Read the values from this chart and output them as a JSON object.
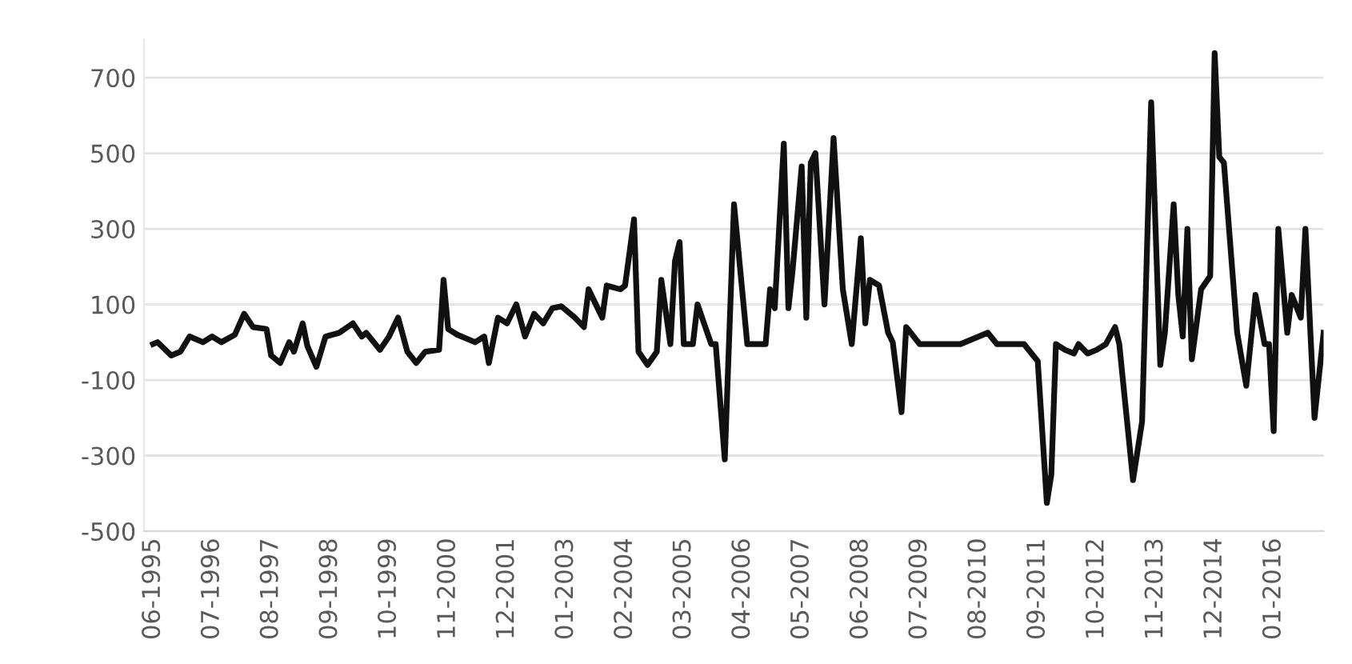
{
  "chart_data": {
    "type": "line",
    "color": "#111111",
    "line_style": "solid",
    "marker": "none",
    "grid": "y",
    "legend": false,
    "x": [
      "1995-06",
      "1995-07",
      "1995-10",
      "1995-12",
      "1996-02",
      "1996-05",
      "1996-07",
      "1996-09",
      "1996-12",
      "1997-02",
      "1997-04",
      "1997-07",
      "1997-08",
      "1997-10",
      "1997-12",
      "1998-01",
      "1998-03",
      "1998-04",
      "1998-06",
      "1998-08",
      "1998-11",
      "1999-02",
      "1999-04",
      "1999-05",
      "1999-08",
      "1999-10",
      "1999-12",
      "2000-02",
      "2000-04",
      "2000-06",
      "2000-09",
      "2000-10",
      "2000-11",
      "2001-01",
      "2001-05",
      "2001-07",
      "2001-08",
      "2001-10",
      "2001-12",
      "2002-02",
      "2002-04",
      "2002-06",
      "2002-08",
      "2002-10",
      "2002-12",
      "2003-03",
      "2003-05",
      "2003-06",
      "2003-09",
      "2003-10",
      "2004-01",
      "2004-02",
      "2004-04",
      "2004-05",
      "2004-07",
      "2004-09",
      "2004-10",
      "2004-12",
      "2005-01",
      "2005-02",
      "2005-03",
      "2005-05",
      "2005-06",
      "2005-09",
      "2005-10",
      "2005-12",
      "2006-02",
      "2006-05",
      "2006-09",
      "2006-10",
      "2006-11",
      "2007-01",
      "2007-02",
      "2007-03",
      "2007-05",
      "2007-06",
      "2007-07",
      "2007-08",
      "2007-10",
      "2007-12",
      "2008-02",
      "2008-04",
      "2008-06",
      "2008-07",
      "2008-08",
      "2008-10",
      "2008-12",
      "2009-01",
      "2009-03",
      "2009-04",
      "2009-07",
      "2009-09",
      "2010-04",
      "2010-10",
      "2010-12",
      "2011-06",
      "2011-09",
      "2011-11",
      "2011-12",
      "2012-01",
      "2012-03",
      "2012-05",
      "2012-06",
      "2012-08",
      "2012-10",
      "2012-12",
      "2013-02",
      "2013-03",
      "2013-06",
      "2013-08",
      "2013-10",
      "2013-12",
      "2014-01",
      "2014-03",
      "2014-04",
      "2014-05",
      "2014-06",
      "2014-07",
      "2014-09",
      "2014-11",
      "2014-12",
      "2015-01",
      "2015-02",
      "2015-05",
      "2015-07",
      "2015-09",
      "2015-11",
      "2015-12",
      "2016-01",
      "2016-02",
      "2016-04",
      "2016-05",
      "2016-07",
      "2016-08",
      "2016-10",
      "2016-12"
    ],
    "values": [
      -5,
      0,
      -35,
      -25,
      15,
      0,
      15,
      0,
      20,
      75,
      40,
      35,
      -35,
      -55,
      0,
      -25,
      50,
      -10,
      -65,
      15,
      25,
      50,
      15,
      25,
      -20,
      15,
      65,
      -25,
      -55,
      -25,
      -20,
      165,
      35,
      20,
      0,
      15,
      -55,
      65,
      50,
      100,
      15,
      75,
      50,
      90,
      95,
      65,
      40,
      140,
      65,
      150,
      140,
      150,
      325,
      -25,
      -60,
      -25,
      165,
      -5,
      215,
      265,
      -5,
      -5,
      100,
      -5,
      -5,
      -310,
      365,
      -5,
      -5,
      140,
      90,
      525,
      90,
      190,
      465,
      65,
      475,
      500,
      100,
      540,
      140,
      -5,
      275,
      50,
      165,
      150,
      25,
      0,
      -185,
      40,
      -5,
      -5,
      -5,
      25,
      -5,
      -5,
      -50,
      -425,
      -350,
      -5,
      -20,
      -30,
      -5,
      -30,
      -20,
      -5,
      40,
      -5,
      -365,
      -210,
      635,
      -60,
      25,
      365,
      125,
      15,
      300,
      -45,
      140,
      175,
      765,
      490,
      475,
      25,
      -115,
      125,
      -5,
      -5,
      -235,
      300,
      25,
      125,
      65,
      300,
      -200,
      25
    ],
    "xlim": [
      "1995-04",
      "2016-12"
    ],
    "xticks": [
      {
        "value": "1995-06",
        "label": "06-1995"
      },
      {
        "value": "1996-07",
        "label": "07-1996"
      },
      {
        "value": "1997-08",
        "label": "08-1997"
      },
      {
        "value": "1998-09",
        "label": "09-1998"
      },
      {
        "value": "1999-10",
        "label": "10-1999"
      },
      {
        "value": "2000-11",
        "label": "11-2000"
      },
      {
        "value": "2001-12",
        "label": "12-2001"
      },
      {
        "value": "2003-01",
        "label": "01-2003"
      },
      {
        "value": "2004-02",
        "label": "02-2004"
      },
      {
        "value": "2005-03",
        "label": "03-2005"
      },
      {
        "value": "2006-04",
        "label": "04-2006"
      },
      {
        "value": "2007-05",
        "label": "05-2007"
      },
      {
        "value": "2008-06",
        "label": "06-2008"
      },
      {
        "value": "2009-07",
        "label": "07-2009"
      },
      {
        "value": "2010-08",
        "label": "08-2010"
      },
      {
        "value": "2011-09",
        "label": "09-2011"
      },
      {
        "value": "2012-10",
        "label": "10-2012"
      },
      {
        "value": "2013-11",
        "label": "11-2013"
      },
      {
        "value": "2014-12",
        "label": "12-2014"
      },
      {
        "value": "2016-01",
        "label": "01-2016"
      }
    ],
    "ylim": [
      -500,
      800
    ],
    "yticks": [
      -500,
      -300,
      -100,
      100,
      300,
      500,
      700
    ]
  }
}
